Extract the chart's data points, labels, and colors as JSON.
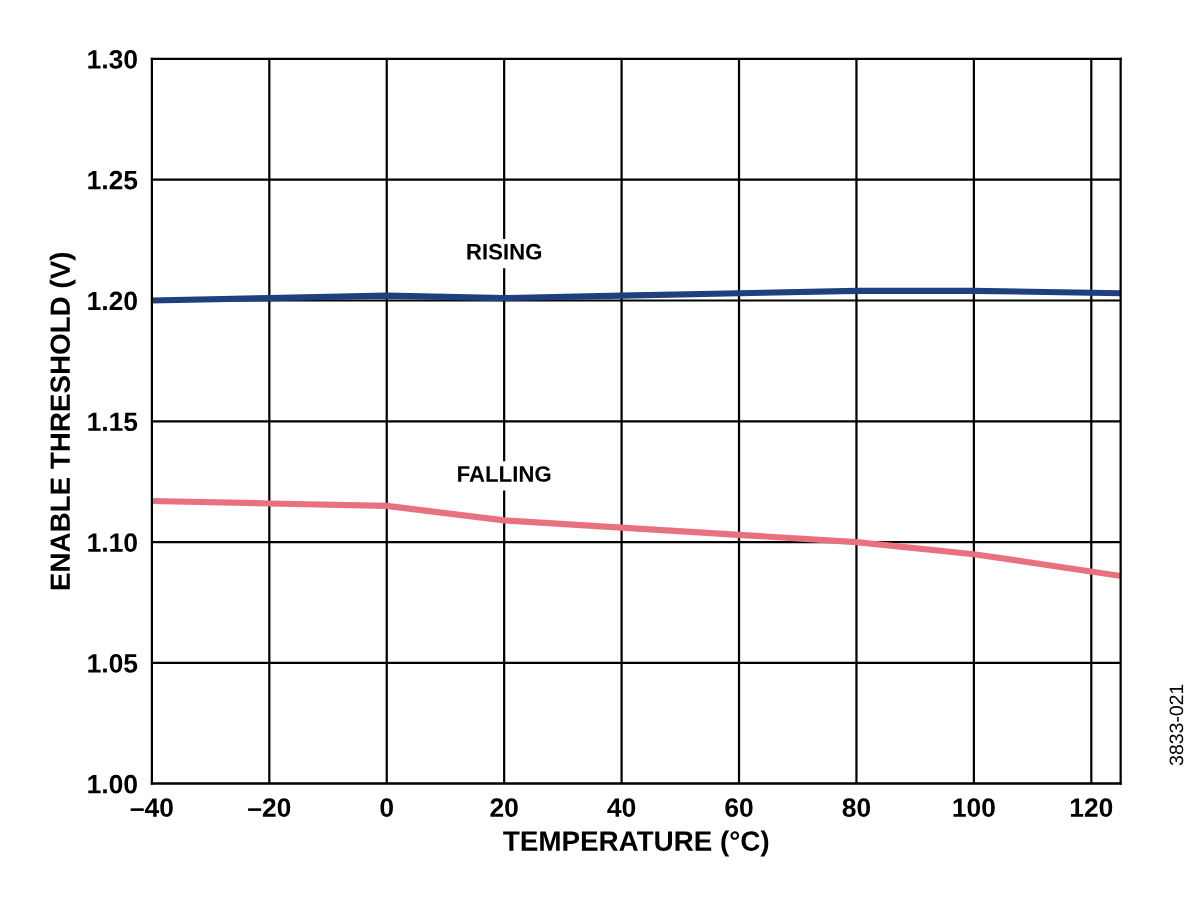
{
  "chart_data": {
    "type": "line",
    "xlabel": "TEMPERATURE (°C)",
    "ylabel": "ENABLE THRESHOLD (V)",
    "xlim": [
      -40,
      125
    ],
    "ylim": [
      1.0,
      1.3
    ],
    "xticks": [
      {
        "value": -40,
        "label": "–40"
      },
      {
        "value": -20,
        "label": "–20"
      },
      0,
      20,
      40,
      60,
      80,
      100,
      120
    ],
    "yticks": [
      {
        "value": 1.0,
        "label": "1.00"
      },
      {
        "value": 1.05,
        "label": "1.05"
      },
      {
        "value": 1.1,
        "label": "1.10"
      },
      {
        "value": 1.15,
        "label": "1.15"
      },
      {
        "value": 1.2,
        "label": "1.20"
      },
      {
        "value": 1.25,
        "label": "1.25"
      },
      {
        "value": 1.3,
        "label": "1.30"
      }
    ],
    "grid": true,
    "line_style": "solid",
    "marker": "none",
    "series": [
      {
        "name": "RISING",
        "color": "#1f3f7f",
        "x": [
          -40,
          -20,
          0,
          20,
          40,
          60,
          80,
          100,
          125
        ],
        "values": [
          1.2,
          1.201,
          1.202,
          1.201,
          1.202,
          1.203,
          1.204,
          1.204,
          1.203
        ]
      },
      {
        "name": "FALLING",
        "color": "#e8717f",
        "x": [
          -40,
          -20,
          0,
          20,
          40,
          60,
          80,
          100,
          125
        ],
        "values": [
          1.117,
          1.116,
          1.115,
          1.109,
          1.106,
          1.103,
          1.1,
          1.095,
          1.086
        ]
      }
    ],
    "annotations": [
      "3833-021"
    ]
  }
}
